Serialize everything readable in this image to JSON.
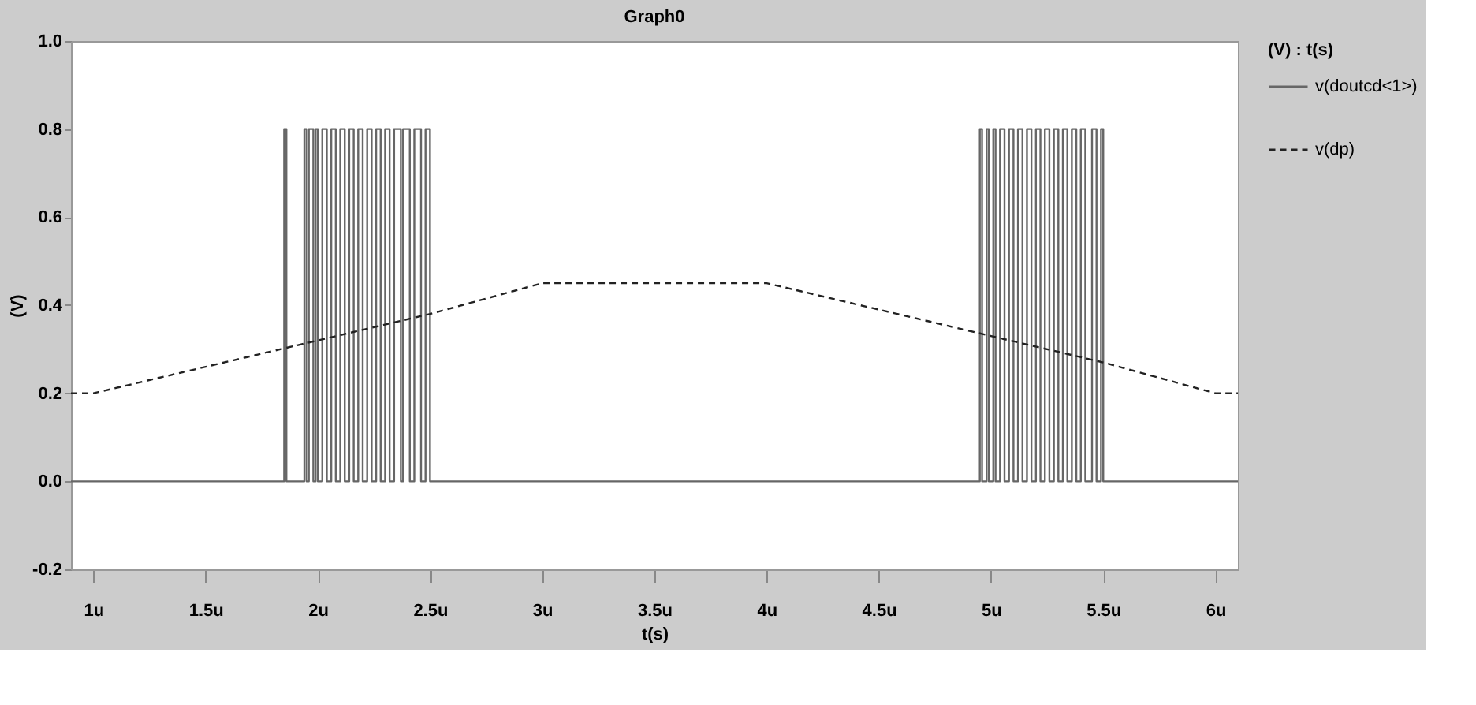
{
  "chart_data": {
    "type": "line",
    "title": "Graph0",
    "xlabel": "t(s)",
    "ylabel": "(V)",
    "legend_title": "(V) : t(s)",
    "xlim": [
      0.9,
      6.1
    ],
    "ylim": [
      -0.2,
      1.0
    ],
    "xticks": [
      {
        "value": 1,
        "label": "1u"
      },
      {
        "value": 1.5,
        "label": "1.5u"
      },
      {
        "value": 2,
        "label": "2u"
      },
      {
        "value": 2.5,
        "label": "2.5u"
      },
      {
        "value": 3,
        "label": "3u"
      },
      {
        "value": 3.5,
        "label": "3.5u"
      },
      {
        "value": 4,
        "label": "4u"
      },
      {
        "value": 4.5,
        "label": "4.5u"
      },
      {
        "value": 5,
        "label": "5u"
      },
      {
        "value": 5.5,
        "label": "5.5u"
      },
      {
        "value": 6,
        "label": "6u"
      }
    ],
    "yticks": [
      {
        "value": -0.2,
        "label": "-0.2"
      },
      {
        "value": 0,
        "label": "0.0"
      },
      {
        "value": 0.2,
        "label": "0.2"
      },
      {
        "value": 0.4,
        "label": "0.4"
      },
      {
        "value": 0.6,
        "label": "0.6"
      },
      {
        "value": 0.8,
        "label": "0.8"
      },
      {
        "value": 1.0,
        "label": "1.0"
      }
    ],
    "grid": false,
    "legend": "right",
    "marker": "none",
    "series": [
      {
        "name": "v(doutcd<1>)",
        "color": "#666666",
        "line_style": "solid",
        "x": [
          0.9,
          1.85,
          1.85,
          1.86,
          1.86,
          1.94,
          1.94,
          1.95,
          1.95,
          1.96,
          1.96,
          1.98,
          1.98,
          1.99,
          1.99,
          2.0,
          2.0,
          2.02,
          2.02,
          2.04,
          2.04,
          2.06,
          2.06,
          2.08,
          2.08,
          2.1,
          2.1,
          2.12,
          2.12,
          2.14,
          2.14,
          2.16,
          2.16,
          2.18,
          2.18,
          2.2,
          2.2,
          2.22,
          2.22,
          2.24,
          2.24,
          2.26,
          2.26,
          2.28,
          2.28,
          2.3,
          2.3,
          2.32,
          2.32,
          2.34,
          2.34,
          2.37,
          2.37,
          2.38,
          2.38,
          2.41,
          2.41,
          2.43,
          2.43,
          2.46,
          2.46,
          2.48,
          2.48,
          2.5,
          2.5,
          4.95,
          4.95,
          4.96,
          4.96,
          4.98,
          4.98,
          4.99,
          4.99,
          5.01,
          5.01,
          5.02,
          5.02,
          5.04,
          5.04,
          5.06,
          5.06,
          5.08,
          5.08,
          5.1,
          5.1,
          5.12,
          5.12,
          5.14,
          5.14,
          5.16,
          5.16,
          5.18,
          5.18,
          5.2,
          5.2,
          5.22,
          5.22,
          5.24,
          5.24,
          5.26,
          5.26,
          5.28,
          5.28,
          5.3,
          5.3,
          5.32,
          5.32,
          5.34,
          5.34,
          5.36,
          5.36,
          5.38,
          5.38,
          5.4,
          5.4,
          5.42,
          5.42,
          5.45,
          5.45,
          5.47,
          5.47,
          5.49,
          5.49,
          5.5,
          5.5,
          6.1
        ],
        "values": [
          0,
          0,
          0.8,
          0.8,
          0,
          0,
          0.8,
          0.8,
          0,
          0,
          0.8,
          0.8,
          0,
          0,
          0.8,
          0.8,
          0,
          0,
          0.8,
          0.8,
          0,
          0,
          0.8,
          0.8,
          0,
          0,
          0.8,
          0.8,
          0,
          0,
          0.8,
          0.8,
          0,
          0,
          0.8,
          0.8,
          0,
          0,
          0.8,
          0.8,
          0,
          0,
          0.8,
          0.8,
          0,
          0,
          0.8,
          0.8,
          0,
          0,
          0.8,
          0.8,
          0,
          0,
          0.8,
          0.8,
          0,
          0,
          0.8,
          0.8,
          0,
          0,
          0.8,
          0.8,
          0,
          0,
          0.8,
          0.8,
          0,
          0,
          0.8,
          0.8,
          0,
          0,
          0.8,
          0.8,
          0,
          0,
          0.8,
          0.8,
          0,
          0,
          0.8,
          0.8,
          0,
          0,
          0.8,
          0.8,
          0,
          0,
          0.8,
          0.8,
          0,
          0,
          0.8,
          0.8,
          0,
          0,
          0.8,
          0.8,
          0,
          0,
          0.8,
          0.8,
          0,
          0,
          0.8,
          0.8,
          0,
          0,
          0.8,
          0.8,
          0,
          0,
          0.8,
          0.8,
          0,
          0,
          0.8,
          0.8,
          0,
          0,
          0.8,
          0.8,
          0,
          0
        ]
      },
      {
        "name": "v(dp)",
        "color": "#222222",
        "line_style": "dashed",
        "x": [
          0.9,
          1.0,
          1.5,
          2.0,
          2.5,
          3.0,
          4.0,
          4.5,
          5.0,
          5.5,
          6.0,
          6.1
        ],
        "values": [
          0.2,
          0.2,
          0.26,
          0.32,
          0.38,
          0.45,
          0.45,
          0.39,
          0.33,
          0.27,
          0.2,
          0.2
        ]
      }
    ]
  }
}
